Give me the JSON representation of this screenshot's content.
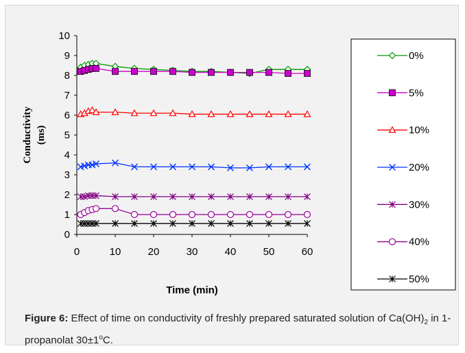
{
  "chart_data": {
    "type": "line",
    "xlabel": "Time (min)",
    "ylabel_line1": "Conductivity",
    "ylabel_line2": "(ms)",
    "xlim": [
      0,
      60
    ],
    "ylim": [
      0,
      10
    ],
    "xticks": [
      "0",
      "10",
      "20",
      "30",
      "40",
      "50",
      "60"
    ],
    "yticks": [
      "0",
      "1",
      "2",
      "3",
      "4",
      "5",
      "6",
      "7",
      "8",
      "9",
      "10"
    ],
    "grid": false,
    "legend_position": "right",
    "x": [
      1,
      2,
      3,
      4,
      5,
      10,
      15,
      20,
      25,
      30,
      35,
      40,
      45,
      50,
      55,
      60
    ],
    "series": [
      {
        "name": "0%",
        "color": "#009900",
        "marker": "diamond",
        "values": [
          8.4,
          8.5,
          8.55,
          8.6,
          8.6,
          8.45,
          8.35,
          8.3,
          8.25,
          8.2,
          8.2,
          8.15,
          8.1,
          8.3,
          8.3,
          8.3
        ]
      },
      {
        "name": "5%",
        "color": "#cc00cc",
        "marker": "square",
        "values": [
          8.2,
          8.25,
          8.3,
          8.35,
          8.35,
          8.2,
          8.2,
          8.2,
          8.2,
          8.15,
          8.15,
          8.15,
          8.15,
          8.15,
          8.1,
          8.1
        ]
      },
      {
        "name": "10%",
        "color": "#ff0000",
        "marker": "triangle",
        "values": [
          6.05,
          6.1,
          6.2,
          6.25,
          6.15,
          6.15,
          6.1,
          6.1,
          6.1,
          6.05,
          6.05,
          6.05,
          6.05,
          6.05,
          6.05,
          6.05
        ]
      },
      {
        "name": "20%",
        "color": "#0033ff",
        "marker": "x",
        "values": [
          3.4,
          3.45,
          3.5,
          3.5,
          3.55,
          3.6,
          3.4,
          3.4,
          3.4,
          3.4,
          3.4,
          3.35,
          3.35,
          3.4,
          3.4,
          3.4
        ]
      },
      {
        "name": "30%",
        "color": "#800080",
        "marker": "asterisk",
        "values": [
          1.9,
          1.9,
          1.95,
          1.95,
          1.95,
          1.9,
          1.9,
          1.9,
          1.9,
          1.9,
          1.9,
          1.9,
          1.9,
          1.9,
          1.9,
          1.9
        ]
      },
      {
        "name": "40%",
        "color": "#990099",
        "marker": "circle",
        "values": [
          1.0,
          1.1,
          1.2,
          1.25,
          1.3,
          1.3,
          1.0,
          1.0,
          1.0,
          1.0,
          1.0,
          1.0,
          1.0,
          1.0,
          1.0,
          1.0
        ]
      },
      {
        "name": "50%",
        "color": "#000000",
        "marker": "asterisk",
        "values": [
          0.55,
          0.55,
          0.55,
          0.55,
          0.55,
          0.55,
          0.55,
          0.55,
          0.55,
          0.55,
          0.55,
          0.55,
          0.55,
          0.55,
          0.55,
          0.55
        ]
      }
    ]
  },
  "caption": {
    "label": "Figure 6:",
    "text_part1": " Effect of time on conductivity of freshly prepared saturated solution of Ca(OH)",
    "subscript": "2",
    "text_part2": " in  1-propanolat 30±1",
    "superscript": "o",
    "text_part3": "C."
  }
}
